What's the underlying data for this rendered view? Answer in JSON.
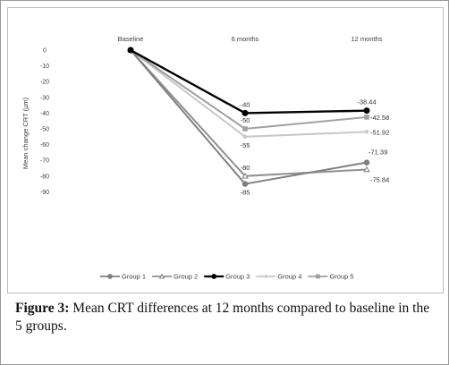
{
  "chart_data": {
    "type": "line",
    "categories": [
      "Baseline",
      "6 months",
      "12 months"
    ],
    "ylabel": "Mean change CRT (µm)",
    "xlabel": "",
    "ylim": [
      -90,
      0
    ],
    "yticks": [
      0,
      -10,
      -20,
      -30,
      -40,
      -50,
      -60,
      -70,
      -80,
      -90
    ],
    "y_axis_position": "left",
    "x_labels_position": "top",
    "grid": false,
    "legend_position": "bottom",
    "series": [
      {
        "name": "Group 1",
        "values": [
          0,
          -85,
          -71.39
        ],
        "color": "#808080",
        "marker": "circle",
        "labels": [
          "",
          "-85",
          "-71.39"
        ],
        "label_pos": [
          "",
          "below",
          "above-right"
        ]
      },
      {
        "name": "Group 2",
        "values": [
          0,
          -80,
          -75.84
        ],
        "color": "#909090",
        "marker": "triangle",
        "labels": [
          "",
          "-80",
          "-75.84"
        ],
        "label_pos": [
          "",
          "above",
          "below-right"
        ]
      },
      {
        "name": "Group 3",
        "values": [
          0,
          -40,
          -38.44
        ],
        "color": "#000000",
        "marker": "circle",
        "labels": [
          "",
          "-40",
          "-38.44"
        ],
        "label_pos": [
          "",
          "above",
          "above"
        ]
      },
      {
        "name": "Group 4",
        "values": [
          0,
          -55,
          -51.92
        ],
        "color": "#c8c8c8",
        "marker": "diamond",
        "labels": [
          "",
          "-55",
          "-51.92"
        ],
        "label_pos": [
          "",
          "below",
          "right"
        ]
      },
      {
        "name": "Group 5",
        "values": [
          0,
          -50,
          -42.58
        ],
        "color": "#a0a0a0",
        "marker": "square",
        "labels": [
          "",
          "-50",
          "-42.58"
        ],
        "label_pos": [
          "",
          "above",
          "right"
        ]
      }
    ]
  },
  "caption": {
    "label": "Figure 3:",
    "text": " Mean CRT differences at 12 months compared to baseline in the 5 groups."
  }
}
